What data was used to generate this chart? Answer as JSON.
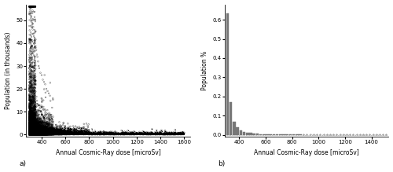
{
  "scatter_xlabel": "Annual Cosmic-Ray dose [microSv]",
  "scatter_ylabel": "Population (in thousands)",
  "scatter_xlim": [
    270,
    1650
  ],
  "scatter_ylim": [
    -1,
    57
  ],
  "scatter_xticks": [
    400,
    600,
    800,
    1000,
    1200,
    1400,
    1600
  ],
  "scatter_yticks": [
    0,
    10,
    20,
    30,
    40,
    50
  ],
  "scatter_label": "a)",
  "hist_xlabel": "Annual Cosmic-Ray dose [microSv]",
  "hist_ylabel": "Population %",
  "hist_xlim": [
    290,
    1530
  ],
  "hist_ylim": [
    -0.01,
    0.68
  ],
  "hist_xticks": [
    400,
    600,
    800,
    1000,
    1200,
    1400
  ],
  "hist_yticks": [
    0.0,
    0.1,
    0.2,
    0.3,
    0.4,
    0.5,
    0.6
  ],
  "hist_label": "b)",
  "hist_bin_edges": [
    300,
    325,
    350,
    375,
    400,
    425,
    450,
    475,
    500,
    525,
    550,
    575,
    600,
    625,
    650,
    675,
    700,
    725,
    750,
    775,
    800,
    825,
    850,
    875,
    900,
    925,
    950,
    975,
    1000,
    1025,
    1050,
    1075,
    1100,
    1125,
    1150,
    1175,
    1200,
    1225,
    1250,
    1275,
    1300,
    1325,
    1350,
    1375,
    1400,
    1425,
    1450,
    1475,
    1500,
    1525,
    1550
  ],
  "hist_values": [
    0.635,
    0.17,
    0.068,
    0.04,
    0.025,
    0.016,
    0.012,
    0.009,
    0.007,
    0.005,
    0.004,
    0.003,
    0.002,
    0.002,
    0.002,
    0.002,
    0.001,
    0.001,
    0.001,
    0.001,
    0.001,
    0.001,
    0.001,
    0.0005,
    0.0005,
    0.0005,
    0.0005,
    0.0005,
    0.0005,
    0.0005,
    0.0005,
    0.0005,
    0.0003,
    0.0003,
    0.0003,
    0.0003,
    0.0003,
    0.0003,
    0.0003,
    0.0003,
    0.0003,
    0.0003,
    0.0003,
    0.0003,
    0.0003,
    0.0003,
    0.0003,
    0.0003,
    0.0003,
    0.0003
  ],
  "dot_color": "#000000",
  "bar_color": "#777777",
  "bg_color": "#ffffff",
  "font_size": 5.5,
  "label_font_size": 5.5,
  "tick_font_size": 5.0
}
